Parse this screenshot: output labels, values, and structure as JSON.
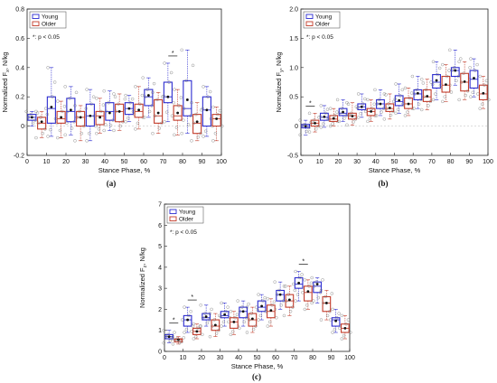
{
  "figure": {
    "panels_order": [
      "a",
      "b",
      "c"
    ]
  },
  "chart_data": [
    {
      "id": "a",
      "type": "box",
      "panel_label": "(a)",
      "xlabel": "Stance Phase, %",
      "ylabel_main": "Normalized F",
      "ylabel_sub": "x",
      "ylabel_unit": ", N/kg",
      "xlim": [
        0,
        100
      ],
      "ylim": [
        -0.2,
        0.8
      ],
      "xticks": [
        0,
        10,
        20,
        30,
        40,
        50,
        60,
        70,
        80,
        90,
        100
      ],
      "yticks": [
        -0.2,
        0,
        0.2,
        0.4,
        0.6,
        0.8
      ],
      "ytick_labels": [
        "-0.2",
        "0",
        "0.2",
        "0.4",
        "0.6",
        "0.8"
      ],
      "legend": [
        "Young",
        "Older"
      ],
      "significance_note": "*: p < 0.05",
      "significant_x": [
        75
      ],
      "series": [
        {
          "name": "Young",
          "color": "#2b2bd0",
          "x": [
            2.5,
            12.5,
            22.5,
            32.5,
            42.5,
            52.5,
            62.5,
            72.5,
            82.5,
            92.5
          ],
          "q1": [
            0.04,
            0.02,
            0.03,
            0.0,
            0.04,
            0.08,
            0.14,
            0.16,
            0.07,
            0.0
          ],
          "median": [
            0.06,
            0.12,
            0.1,
            0.07,
            0.1,
            0.12,
            0.2,
            0.2,
            0.12,
            0.11
          ],
          "q3": [
            0.08,
            0.2,
            0.19,
            0.15,
            0.16,
            0.16,
            0.25,
            0.3,
            0.31,
            0.2
          ],
          "low": [
            0.0,
            -0.07,
            -0.06,
            -0.1,
            -0.03,
            0.03,
            0.06,
            0.03,
            -0.05,
            -0.07
          ],
          "high": [
            0.1,
            0.4,
            0.27,
            0.25,
            0.24,
            0.21,
            0.33,
            0.43,
            0.52,
            0.27
          ],
          "mean": [
            0.06,
            0.13,
            0.11,
            0.07,
            0.09,
            0.12,
            0.21,
            0.2,
            0.18,
            0.11
          ]
        },
        {
          "name": "Older",
          "color": "#c23b2a",
          "x": [
            7.5,
            17.5,
            27.5,
            37.5,
            47.5,
            57.5,
            67.5,
            77.5,
            87.5,
            97.5
          ],
          "q1": [
            -0.02,
            0.02,
            0.0,
            0.01,
            0.03,
            0.06,
            0.02,
            0.04,
            -0.05,
            0.0
          ],
          "median": [
            0.02,
            0.05,
            0.06,
            0.07,
            0.1,
            0.1,
            0.07,
            0.07,
            0.02,
            0.05
          ],
          "q3": [
            0.06,
            0.1,
            0.1,
            0.1,
            0.15,
            0.15,
            0.18,
            0.14,
            0.08,
            0.08
          ],
          "low": [
            -0.08,
            -0.08,
            -0.1,
            -0.05,
            -0.03,
            -0.02,
            -0.05,
            -0.06,
            -0.1,
            -0.1
          ],
          "high": [
            0.1,
            0.17,
            0.14,
            0.19,
            0.22,
            0.27,
            0.23,
            0.25,
            0.16,
            0.13
          ],
          "mean": [
            0.03,
            0.06,
            0.06,
            0.06,
            0.1,
            0.11,
            0.09,
            0.09,
            0.03,
            0.05
          ]
        }
      ]
    },
    {
      "id": "b",
      "type": "box",
      "panel_label": "(b)",
      "xlabel": "Stance Phase, %",
      "ylabel_main": "Normalized F",
      "ylabel_sub": "y",
      "ylabel_unit": ", N/kg",
      "xlim": [
        0,
        100
      ],
      "ylim": [
        -0.5,
        2.0
      ],
      "xticks": [
        0,
        10,
        20,
        30,
        40,
        50,
        60,
        70,
        80,
        90,
        100
      ],
      "yticks": [
        -0.5,
        0,
        0.5,
        1.0,
        1.5,
        2.0
      ],
      "ytick_labels": [
        "-0.5",
        "0",
        "0.5",
        "1.0",
        "1.5",
        "2.0"
      ],
      "legend": [
        "Young",
        "Older"
      ],
      "significance_note": "*: p < 0.05",
      "significant_x": [
        5
      ],
      "series": [
        {
          "name": "Young",
          "color": "#2b2bd0",
          "x": [
            2.5,
            12.5,
            22.5,
            32.5,
            42.5,
            52.5,
            62.5,
            72.5,
            82.5,
            92.5
          ],
          "q1": [
            -0.03,
            0.1,
            0.18,
            0.28,
            0.3,
            0.35,
            0.45,
            0.65,
            0.85,
            0.65
          ],
          "median": [
            0.0,
            0.15,
            0.22,
            0.33,
            0.38,
            0.42,
            0.55,
            0.75,
            0.95,
            0.8
          ],
          "q3": [
            0.03,
            0.22,
            0.3,
            0.38,
            0.45,
            0.52,
            0.62,
            0.88,
            1.0,
            0.95
          ],
          "low": [
            -0.15,
            -0.02,
            0.08,
            0.15,
            0.18,
            0.22,
            0.3,
            0.45,
            0.7,
            0.5
          ],
          "high": [
            0.1,
            0.35,
            0.45,
            0.55,
            0.62,
            0.72,
            0.85,
            1.1,
            1.3,
            1.15
          ],
          "mean": [
            0.0,
            0.16,
            0.24,
            0.33,
            0.38,
            0.44,
            0.56,
            0.78,
            0.95,
            0.82
          ]
        },
        {
          "name": "Older",
          "color": "#c23b2a",
          "x": [
            7.5,
            17.5,
            27.5,
            37.5,
            47.5,
            57.5,
            67.5,
            77.5,
            87.5,
            97.5
          ],
          "q1": [
            0.0,
            0.08,
            0.12,
            0.18,
            0.25,
            0.3,
            0.42,
            0.58,
            0.6,
            0.45
          ],
          "median": [
            0.05,
            0.12,
            0.18,
            0.25,
            0.3,
            0.38,
            0.5,
            0.7,
            0.75,
            0.55
          ],
          "q3": [
            0.1,
            0.18,
            0.22,
            0.3,
            0.38,
            0.48,
            0.62,
            0.85,
            0.9,
            0.7
          ],
          "low": [
            -0.1,
            0.0,
            0.02,
            0.08,
            0.12,
            0.18,
            0.28,
            0.42,
            0.45,
            0.3
          ],
          "high": [
            0.22,
            0.3,
            0.4,
            0.45,
            0.55,
            0.65,
            0.8,
            1.05,
            1.1,
            0.85
          ],
          "mean": [
            0.05,
            0.13,
            0.17,
            0.25,
            0.31,
            0.38,
            0.51,
            0.71,
            0.76,
            0.56
          ]
        }
      ]
    },
    {
      "id": "c",
      "type": "box",
      "panel_label": "(c)",
      "xlabel": "Stance Phase, %",
      "ylabel_main": "Normalized F",
      "ylabel_sub": "z",
      "ylabel_unit": ", N/kg",
      "xlim": [
        0,
        100
      ],
      "ylim": [
        0,
        7
      ],
      "xticks": [
        0,
        10,
        20,
        30,
        40,
        50,
        60,
        70,
        80,
        90,
        100
      ],
      "yticks": [
        0,
        1,
        2,
        3,
        4,
        5,
        6,
        7
      ],
      "ytick_labels": [
        "0",
        "1",
        "2",
        "3",
        "4",
        "5",
        "6",
        "7"
      ],
      "legend": [
        "Young",
        "Older"
      ],
      "significance_note": "*: p < 0.05",
      "significant_x": [
        5,
        15,
        75
      ],
      "series": [
        {
          "name": "Young",
          "color": "#2b2bd0",
          "x": [
            2.5,
            12.5,
            22.5,
            32.5,
            42.5,
            52.5,
            62.5,
            72.5,
            82.5,
            92.5
          ],
          "q1": [
            0.6,
            1.2,
            1.5,
            1.6,
            1.6,
            1.9,
            2.4,
            3.0,
            2.8,
            1.2
          ],
          "median": [
            0.7,
            1.5,
            1.6,
            1.7,
            1.9,
            2.1,
            2.7,
            3.2,
            3.1,
            1.5
          ],
          "q3": [
            0.8,
            1.7,
            1.8,
            1.9,
            2.1,
            2.4,
            2.9,
            3.5,
            3.3,
            1.6
          ],
          "low": [
            0.4,
            0.9,
            1.2,
            1.2,
            1.2,
            1.5,
            2.0,
            2.4,
            2.3,
            0.9
          ],
          "high": [
            1.0,
            2.1,
            2.2,
            2.3,
            2.4,
            2.7,
            3.3,
            3.8,
            3.5,
            2.0
          ],
          "mean": [
            0.7,
            1.5,
            1.65,
            1.75,
            1.9,
            2.15,
            2.7,
            3.25,
            3.2,
            1.45
          ]
        },
        {
          "name": "Older",
          "color": "#c23b2a",
          "x": [
            7.5,
            17.5,
            27.5,
            37.5,
            47.5,
            57.5,
            67.5,
            77.5,
            87.5,
            97.5
          ],
          "q1": [
            0.45,
            0.8,
            1.0,
            1.1,
            1.2,
            1.6,
            2.1,
            2.4,
            1.9,
            0.9
          ],
          "median": [
            0.55,
            0.95,
            1.2,
            1.4,
            1.5,
            1.9,
            2.4,
            2.8,
            2.3,
            1.1
          ],
          "q3": [
            0.6,
            1.1,
            1.5,
            1.6,
            1.8,
            2.2,
            2.7,
            3.1,
            2.6,
            1.3
          ],
          "low": [
            0.35,
            0.6,
            0.7,
            0.8,
            0.9,
            1.2,
            1.7,
            2.0,
            1.5,
            0.6
          ],
          "high": [
            0.7,
            1.3,
            1.8,
            1.9,
            2.1,
            2.5,
            3.1,
            3.4,
            2.9,
            1.7
          ],
          "mean": [
            0.55,
            0.95,
            1.25,
            1.4,
            1.55,
            1.95,
            2.45,
            2.85,
            2.3,
            1.1
          ]
        }
      ]
    }
  ]
}
